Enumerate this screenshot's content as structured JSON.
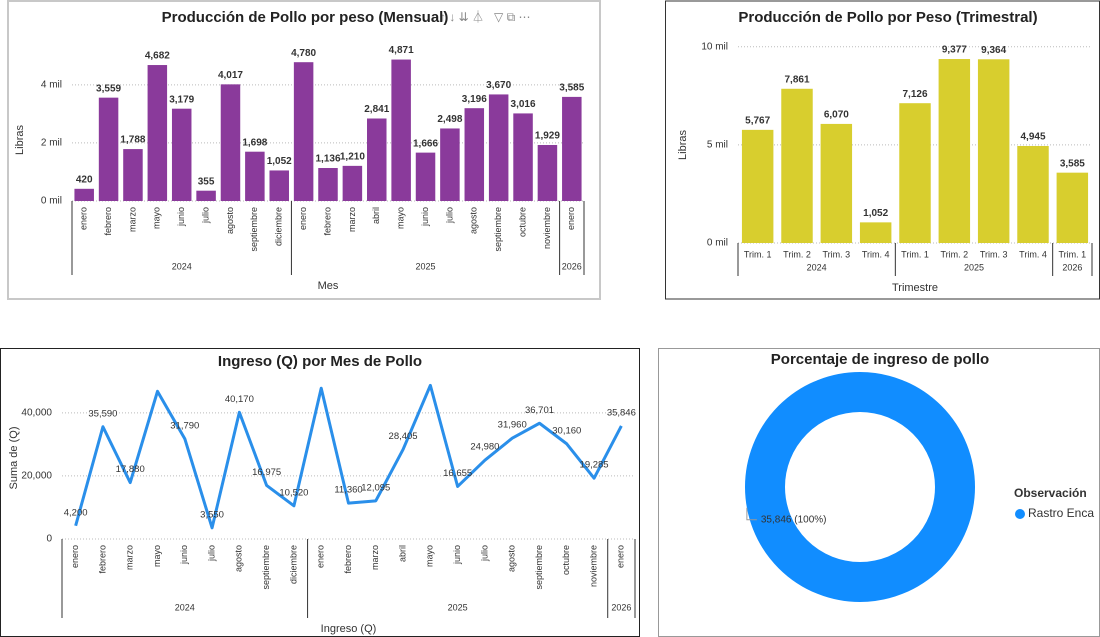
{
  "chart_data": [
    {
      "type": "bar",
      "title": "Producción de Pollo por peso (Mensual)",
      "y_label": "Libras",
      "x_label": "Mes",
      "color": "#8a3a9b",
      "grid": true,
      "groups": [
        {
          "name": "2024",
          "categories": [
            "enero",
            "febrero",
            "marzo",
            "mayo",
            "junio",
            "julio",
            "agosto",
            "septiembre",
            "diciembre"
          ]
        },
        {
          "name": "2025",
          "categories": [
            "enero",
            "febrero",
            "marzo",
            "abril",
            "mayo",
            "junio",
            "julio",
            "agosto",
            "septiembre",
            "octubre",
            "noviembre"
          ]
        },
        {
          "name": "2026",
          "categories": [
            "enero"
          ]
        }
      ],
      "values": [
        420,
        3559,
        1788,
        4682,
        3179,
        355,
        4017,
        1698,
        1052,
        4780,
        1136,
        1210,
        2841,
        4871,
        1666,
        2498,
        3196,
        3670,
        3016,
        1929,
        3585
      ],
      "value_labels": [
        "420",
        "3,559",
        "1,788",
        "4,682",
        "3,179",
        "355",
        "4,017",
        "1,698",
        "1,052",
        "4,780",
        "1,136",
        "1,210",
        "2,841",
        "4,871",
        "1,666",
        "2,498",
        "3,196",
        "3,670",
        "3,016",
        "1,929",
        "3,585"
      ],
      "ylim": [
        0,
        5200
      ],
      "yticks": [
        {
          "value": 0,
          "label": "0 mil"
        },
        {
          "value": 2000,
          "label": "2 mil"
        },
        {
          "value": 4000,
          "label": "4 mil"
        }
      ]
    },
    {
      "type": "bar",
      "title": "Producción de Pollo por Peso (Trimestral)",
      "y_label": "Libras",
      "x_label": "Trimestre",
      "color": "#d8ce2e",
      "grid": true,
      "groups": [
        {
          "name": "2024",
          "categories": [
            "Trim. 1",
            "Trim. 2",
            "Trim. 3",
            "Trim. 4"
          ]
        },
        {
          "name": "2025",
          "categories": [
            "Trim. 1",
            "Trim. 2",
            "Trim. 3",
            "Trim. 4"
          ]
        },
        {
          "name": "2026",
          "categories": [
            "Trim. 1"
          ]
        }
      ],
      "values": [
        5767,
        7861,
        6070,
        1052,
        7126,
        9377,
        9364,
        4945,
        3585
      ],
      "value_labels": [
        "5,767",
        "7,861",
        "6,070",
        "1,052",
        "7,126",
        "9,377",
        "9,364",
        "4,945",
        "3,585"
      ],
      "ylim": [
        0,
        10500
      ],
      "yticks": [
        {
          "value": 0,
          "label": "0 mil"
        },
        {
          "value": 5000,
          "label": "5 mil"
        },
        {
          "value": 10000,
          "label": "10 mil"
        }
      ]
    },
    {
      "type": "line",
      "title": "Ingreso (Q) por Mes de Pollo",
      "y_label": "Suma de (Q)",
      "x_label": "Ingreso (Q)",
      "color": "#2a8fea",
      "grid": true,
      "groups": [
        {
          "name": "2024",
          "categories": [
            "enero",
            "febrero",
            "marzo",
            "mayo",
            "junio",
            "julio",
            "agosto",
            "septiembre",
            "diciembre"
          ]
        },
        {
          "name": "2025",
          "categories": [
            "enero",
            "febrero",
            "marzo",
            "abril",
            "mayo",
            "junio",
            "julio",
            "agosto",
            "septiembre",
            "octubre",
            "noviembre"
          ]
        },
        {
          "name": "2026",
          "categories": [
            "enero"
          ]
        }
      ],
      "values": [
        4200,
        35590,
        17880,
        46820,
        31790,
        3550,
        40170,
        16975,
        10520,
        47800,
        11360,
        12095,
        28405,
        48710,
        16655,
        24980,
        31960,
        36701,
        30160,
        19285,
        35846
      ],
      "value_labels": [
        "4,200",
        "35,590",
        "17,880",
        null,
        "31,790",
        "3,550",
        "40,170",
        "16,975",
        "10,520",
        null,
        "11,360",
        "12,095",
        "28,405",
        null,
        "16,655",
        "24,980",
        "31,960",
        "36,701",
        "30,160",
        "19,285",
        "35,846"
      ],
      "ylim": [
        0,
        52000
      ],
      "yticks": [
        0,
        {
          "value": 20000,
          "label": "20,000"
        },
        {
          "value": 40000,
          "label": "40,000"
        }
      ]
    },
    {
      "type": "pie",
      "donut": true,
      "title": "Porcentaje de ingreso de pollo",
      "legend_title": "Observación",
      "categories": [
        "Rastro Enca"
      ],
      "values": [
        35846
      ],
      "value_labels": [
        "35,846 (100%)"
      ],
      "colors": [
        "#118dff"
      ]
    }
  ]
}
